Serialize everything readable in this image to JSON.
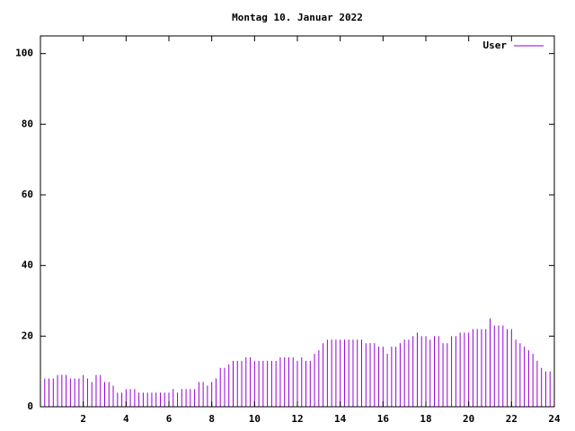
{
  "chart_data": {
    "type": "impulse",
    "title": "Montag 10. Januar 2022",
    "xlim": [
      0,
      24
    ],
    "ylim": [
      0,
      105
    ],
    "xticks": [
      2,
      4,
      6,
      8,
      10,
      12,
      14,
      16,
      18,
      20,
      22,
      24
    ],
    "yticks": [
      0,
      20,
      40,
      60,
      80,
      100
    ],
    "legend": "top-right",
    "x": [
      0,
      0.2,
      0.4,
      0.6,
      0.8,
      1,
      1.2,
      1.4,
      1.6,
      1.8,
      2,
      2.2,
      2.4,
      2.6,
      2.8,
      3,
      3.2,
      3.4,
      3.6,
      3.8,
      4,
      4.2,
      4.4,
      4.6,
      4.8,
      5,
      5.2,
      5.4,
      5.6,
      5.8,
      6,
      6.2,
      6.4,
      6.6,
      6.8,
      7,
      7.2,
      7.4,
      7.6,
      7.8,
      8,
      8.2,
      8.4,
      8.6,
      8.8,
      9,
      9.2,
      9.4,
      9.6,
      9.8,
      10,
      10.2,
      10.4,
      10.6,
      10.8,
      11,
      11.2,
      11.4,
      11.6,
      11.8,
      12,
      12.2,
      12.4,
      12.6,
      12.8,
      13,
      13.2,
      13.4,
      13.6,
      13.8,
      14,
      14.2,
      14.4,
      14.6,
      14.8,
      15,
      15.2,
      15.4,
      15.6,
      15.8,
      16,
      16.2,
      16.4,
      16.6,
      16.8,
      17,
      17.2,
      17.4,
      17.6,
      17.8,
      18,
      18.2,
      18.4,
      18.6,
      18.8,
      19,
      19.2,
      19.4,
      19.6,
      19.8,
      20,
      20.2,
      20.4,
      20.6,
      20.8,
      21,
      21.2,
      21.4,
      21.6,
      21.8,
      22,
      22.2,
      22.4,
      22.6,
      22.8,
      23,
      23.2,
      23.4,
      23.6,
      23.8
    ],
    "series": [
      {
        "name": "User",
        "color": "#9400d3",
        "values": [
          10,
          8,
          8,
          8,
          9,
          9,
          9,
          8,
          8,
          8,
          9,
          8,
          7,
          9,
          9,
          7,
          7,
          6,
          4,
          4,
          5,
          5,
          5,
          4,
          4,
          4,
          4,
          4,
          4,
          4,
          4,
          5,
          4,
          5,
          5,
          5,
          5,
          7,
          7,
          6,
          7,
          8,
          11,
          11,
          12,
          13,
          13,
          13,
          14,
          14,
          13,
          13,
          13,
          13,
          13,
          13,
          14,
          14,
          14,
          14,
          13,
          14,
          13,
          13,
          15,
          16,
          18,
          19,
          19,
          19,
          19,
          19,
          19,
          19,
          19,
          19,
          18,
          18,
          18,
          17,
          17,
          15,
          17,
          17,
          18,
          19,
          19,
          20,
          21,
          20,
          20,
          19,
          20,
          20,
          18,
          18,
          20,
          20,
          21,
          21,
          21,
          22,
          22,
          22,
          22,
          25,
          23,
          23,
          23,
          22,
          22,
          19,
          18,
          17,
          16,
          15,
          13,
          11,
          10,
          10
        ]
      }
    ]
  }
}
